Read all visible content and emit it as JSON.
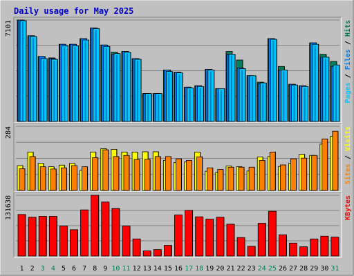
{
  "title": "Daily usage for May 2025",
  "colors": {
    "background": "#c0c0c0",
    "frame_light": "#ffffff",
    "frame_dark": "#808080",
    "grid": "#808080",
    "title": "#0000c8",
    "hits": "#00805c",
    "files": "#0080ff",
    "files_bright": "#00c8ff",
    "pages": "#00c8ff",
    "visits": "#ffff00",
    "sites": "#ff8000",
    "kbytes": "#ff0000",
    "weekend_label": "#00805c",
    "weekday_label": "#000000"
  },
  "chart_data": [
    {
      "type": "bar",
      "panel": "hits-files-pages",
      "ymax_label": "7101",
      "ylim": [
        0,
        7101
      ],
      "side_label": [
        {
          "text": "Pages",
          "color": "#00c8ff"
        },
        {
          "text": " / ",
          "color": "#000000"
        },
        {
          "text": "Files",
          "color": "#0080ff"
        },
        {
          "text": " / ",
          "color": "#000000"
        },
        {
          "text": "Hits",
          "color": "#00805c"
        }
      ],
      "series": [
        {
          "name": "Hits",
          "values": [
            7101,
            6000,
            4550,
            4450,
            5400,
            5400,
            5800,
            6550,
            5350,
            4850,
            4900,
            4400,
            1950,
            1950,
            3600,
            3450,
            2400,
            2500,
            3650,
            2300,
            4900,
            4300,
            3200,
            2750,
            5800,
            3850,
            2600,
            2500,
            5500,
            4700,
            4200
          ]
        },
        {
          "name": "Files",
          "values": [
            7100,
            6000,
            4550,
            4400,
            5400,
            5400,
            5800,
            6550,
            5350,
            4700,
            4900,
            4400,
            1950,
            1950,
            3600,
            3450,
            2400,
            2500,
            3650,
            2300,
            4700,
            3750,
            3200,
            2650,
            5800,
            3600,
            2600,
            2500,
            5500,
            4500,
            3850
          ]
        },
        {
          "name": "Pages",
          "values": [
            7050,
            5950,
            4400,
            4350,
            5300,
            5300,
            5700,
            6500,
            5250,
            4750,
            4850,
            4350,
            1950,
            1950,
            3500,
            3400,
            2350,
            2450,
            3600,
            2300,
            4700,
            3700,
            3200,
            2700,
            5750,
            3600,
            2550,
            2450,
            5400,
            4500,
            3950
          ]
        }
      ]
    },
    {
      "type": "bar",
      "panel": "visits-sites",
      "ymax_label": "284",
      "ylim": [
        0,
        284
      ],
      "side_label": [
        {
          "text": "Sites",
          "color": "#ff8000"
        },
        {
          "text": " / ",
          "color": "#000000"
        },
        {
          "text": "Visits",
          "color": "#ffff00"
        }
      ],
      "series": [
        {
          "name": "Visits",
          "values": [
            110,
            170,
            120,
            105,
            112,
            120,
            89,
            170,
            185,
            182,
            170,
            170,
            171,
            171,
            133,
            123,
            126,
            170,
            85,
            80,
            108,
            105,
            86,
            148,
            150,
            106,
            120,
            160,
            155,
            205,
            240
          ]
        },
        {
          "name": "Sites",
          "values": [
            96,
            150,
            105,
            95,
            100,
            110,
            105,
            145,
            180,
            150,
            155,
            137,
            138,
            150,
            150,
            140,
            133,
            149,
            100,
            93,
            103,
            103,
            103,
            133,
            170,
            113,
            140,
            143,
            155,
            228,
            262
          ]
        }
      ]
    },
    {
      "type": "bar",
      "panel": "kbytes",
      "ymax_label": "131638",
      "ylim": [
        0,
        131638
      ],
      "side_label": [
        {
          "text": "KBytes",
          "color": "#ff0000"
        }
      ],
      "series": [
        {
          "name": "KBytes",
          "values": [
            90000,
            84000,
            86000,
            86000,
            65000,
            57000,
            100000,
            131638,
            117000,
            103000,
            65000,
            37000,
            11000,
            14000,
            23000,
            89000,
            99000,
            85000,
            80000,
            84000,
            69000,
            40000,
            21000,
            71000,
            97000,
            46000,
            28000,
            20000,
            37000,
            43000,
            41000
          ]
        }
      ]
    }
  ],
  "x_labels": [
    "1",
    "2",
    "3",
    "4",
    "5",
    "6",
    "7",
    "8",
    "9",
    "10",
    "11",
    "12",
    "13",
    "14",
    "15",
    "16",
    "17",
    "18",
    "19",
    "20",
    "21",
    "22",
    "23",
    "24",
    "25",
    "26",
    "27",
    "28",
    "29",
    "30",
    "31"
  ],
  "weekend_days": [
    3,
    4,
    10,
    11,
    17,
    18,
    24,
    25,
    31
  ]
}
